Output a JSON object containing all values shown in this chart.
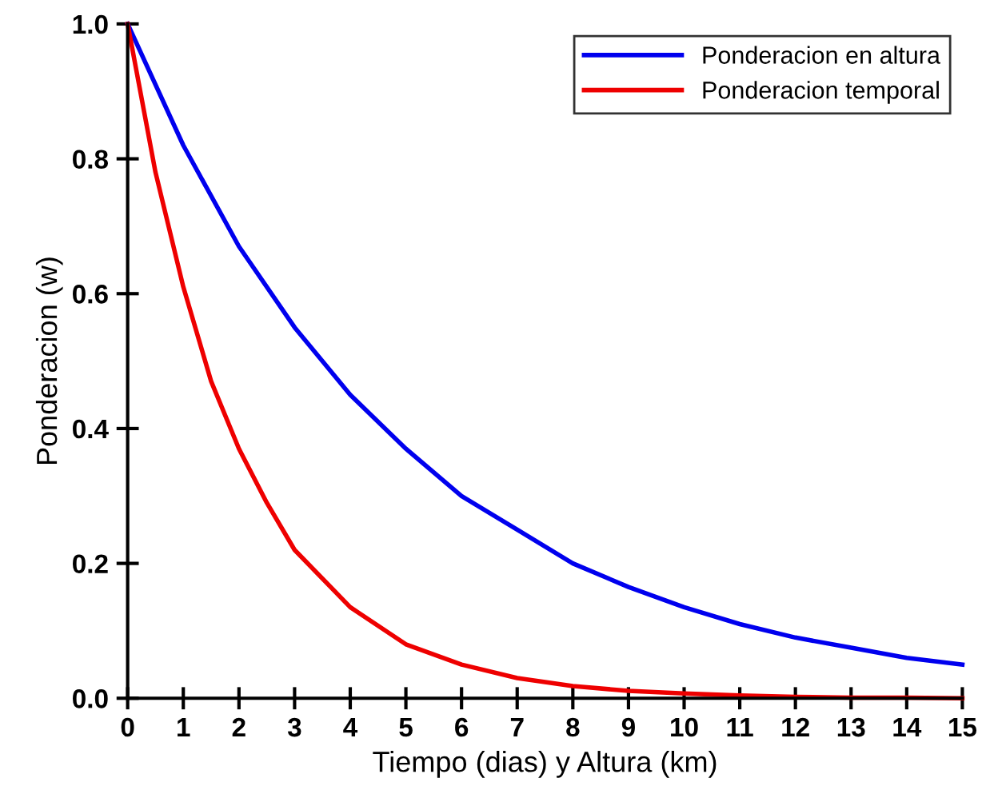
{
  "chart_data": {
    "type": "line",
    "xlabel": "Tiempo (dias) y Altura (km)",
    "ylabel": "Ponderacion (w)",
    "series": [
      {
        "name": "Ponderacion en altura",
        "color": "#0000ee",
        "x": [
          0,
          1,
          2,
          3,
          4,
          5,
          6,
          7,
          8,
          9,
          10,
          11,
          12,
          13,
          14,
          15
        ],
        "values": [
          1.0,
          0.82,
          0.67,
          0.55,
          0.45,
          0.37,
          0.3,
          0.25,
          0.2,
          0.165,
          0.135,
          0.11,
          0.09,
          0.075,
          0.06,
          0.05
        ]
      },
      {
        "name": "Ponderacion temporal",
        "color": "#ee0000",
        "x": [
          0,
          0.5,
          1,
          1.5,
          2,
          2.5,
          3,
          4,
          5,
          6,
          7,
          8,
          9,
          10,
          11,
          12,
          13,
          14,
          15
        ],
        "values": [
          1.0,
          0.78,
          0.61,
          0.47,
          0.37,
          0.29,
          0.22,
          0.135,
          0.08,
          0.05,
          0.03,
          0.018,
          0.011,
          0.007,
          0.004,
          0.002,
          0.001,
          0.001,
          0.0
        ]
      }
    ],
    "xlim": [
      0,
      15
    ],
    "xticks": [
      0,
      1,
      2,
      3,
      4,
      5,
      6,
      7,
      8,
      9,
      10,
      11,
      12,
      13,
      14,
      15
    ],
    "ylim": [
      0,
      1
    ],
    "yticks": [
      {
        "value": 0,
        "label": "0.0"
      },
      {
        "value": 0.2,
        "label": "0.2"
      },
      {
        "value": 0.4,
        "label": "0.4"
      },
      {
        "value": 0.6,
        "label": "0.6"
      },
      {
        "value": 0.8,
        "label": "0.8"
      },
      {
        "value": 1,
        "label": "1.0"
      }
    ],
    "legend": "top right",
    "grid": false,
    "marker": "none",
    "line_style": "solid"
  }
}
